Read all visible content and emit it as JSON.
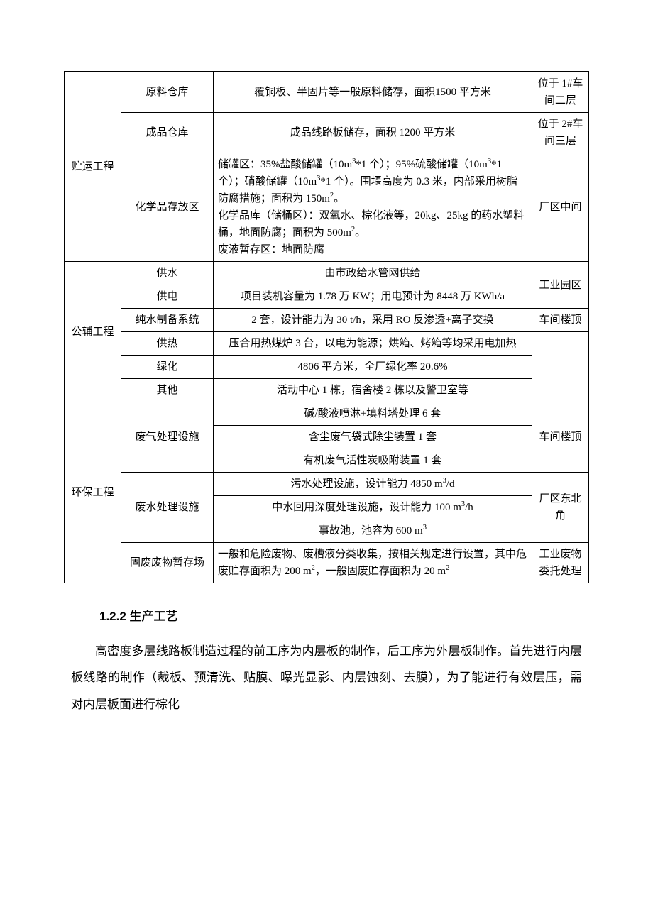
{
  "table": {
    "col_widths": [
      "80px",
      "130px",
      "auto",
      "80px"
    ],
    "rows": [
      {
        "c1": "贮运工程",
        "c1span": 3,
        "c2": "原料仓库",
        "c3": "覆铜板、半固片等一般原料储存，面积1500 平方米",
        "c4": "位于 1#车间二层"
      },
      {
        "c2": "成品仓库",
        "c3": "成品线路板储存，面积 1200 平方米",
        "c4": "位于 2#车间三层"
      },
      {
        "c2": "化学品存放区",
        "c3": "储罐区：35%盐酸储罐（10m³*1 个）；95%硫酸储罐（10m³*1 个）；硝酸储罐（10m³*1 个）。围堰高度为 0.3 米，内部采用树脂防腐措施；面积为 150m²。\n化学品库（储桶区）：双氧水、棕化液等，20kg、25kg 的药水塑料桶，地面防腐；面积为 500m²。\n废液暂存区：地面防腐",
        "c3align": "left",
        "c4": "厂区中间"
      },
      {
        "c1": "公辅工程",
        "c1span": 6,
        "c2": "供水",
        "c3": "由市政给水管网供给",
        "c4": "工业园区",
        "c4span": 2
      },
      {
        "c2": "供电",
        "c3": "项目装机容量为 1.78 万 KW；用电预计为 8448 万 KWh/a"
      },
      {
        "c2": "纯水制备系统",
        "c3": "2 套，设计能力为 30 t/h，采用 RO 反渗透+离子交换",
        "c4": "车间楼顶"
      },
      {
        "c2": "供热",
        "c3": "压合用热煤炉 3 台，以电为能源；烘箱、烤箱等均采用电加热",
        "c4": "",
        "c4span": 3
      },
      {
        "c2": "绿化",
        "c3": "4806 平方米，全厂绿化率 20.6%"
      },
      {
        "c2": "其他",
        "c3": "活动中心 1 栋，宿舍楼 2 栋以及警卫室等"
      },
      {
        "c1": "环保工程",
        "c1span": 7,
        "c2": "废气处理设施",
        "c2span": 3,
        "c3": "碱/酸液喷淋+填料塔处理 6 套",
        "c4": "车间楼顶",
        "c4span": 3
      },
      {
        "c3": "含尘废气袋式除尘装置 1 套"
      },
      {
        "c3": "有机废气活性炭吸附装置 1 套"
      },
      {
        "c2": "废水处理设施",
        "c2span": 3,
        "c3": "污水处理设施，设计能力 4850 m³/d",
        "c4": "厂区东北角",
        "c4span": 3
      },
      {
        "c3": "中水回用深度处理设施，设计能力 100 m³/h"
      },
      {
        "c3": "事故池，池容为 600 m³"
      },
      {
        "c2": "固废废物暂存场",
        "c3": "一般和危险废物、废槽液分类收集，按相关规定进行设置，其中危废贮存面积为 200 m²，一般固废贮存面积为 20 m²",
        "c3align": "left",
        "c4": "工业废物\n委托处理"
      }
    ]
  },
  "heading": "1.2.2 生产工艺",
  "paragraph": "高密度多层线路板制造过程的前工序为内层板的制作，后工序为外层板制作。首先进行内层板线路的制作（裁板、预清洗、贴膜、曝光显影、内层蚀刻、去膜），为了能进行有效层压，需对内层板面进行棕化"
}
